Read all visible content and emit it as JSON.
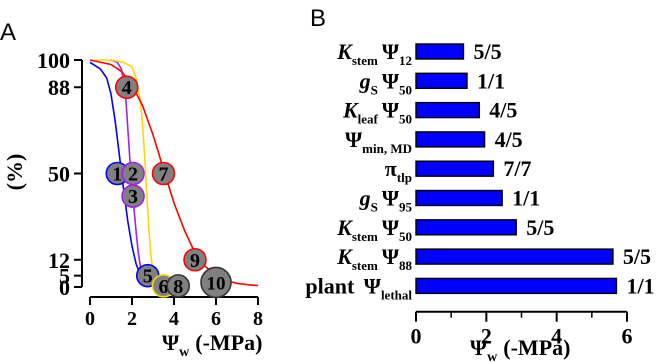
{
  "chart_data": [
    {
      "panel": "A",
      "type": "line",
      "ylabel": "(%)",
      "xlabel_main": "Ψ",
      "xlabel_sub": "w",
      "xlabel_units": "(-MPa)",
      "xlim": [
        0,
        8
      ],
      "ylim": [
        0,
        100
      ],
      "xticks": [
        0,
        2,
        4,
        6,
        8
      ],
      "yticks": [
        0,
        5,
        12,
        50,
        88,
        100
      ],
      "series": [
        {
          "color": "#0000ff",
          "x": [
            0,
            0.5,
            0.8,
            1.0,
            1.2,
            1.4,
            1.6,
            1.8,
            2.0,
            2.2,
            2.4,
            2.6,
            2.8,
            3.0,
            3.3
          ],
          "y": [
            99,
            96,
            92,
            85,
            73,
            58,
            43,
            29,
            18,
            10,
            5.5,
            3,
            2,
            1,
            0.5
          ]
        },
        {
          "color": "#a020f0",
          "x": [
            1.0,
            1.3,
            1.5,
            1.7,
            1.8,
            1.9,
            2.0,
            2.1,
            2.2,
            2.3,
            2.4,
            2.6,
            2.8
          ],
          "y": [
            100,
            99,
            96,
            84,
            70,
            56,
            44,
            34,
            24,
            15,
            9,
            4,
            1.5
          ]
        },
        {
          "color": "#ffd700",
          "x": [
            0.3,
            1.0,
            1.6,
            2.0,
            2.2,
            2.4,
            2.5,
            2.6,
            2.7,
            2.8,
            2.9,
            3.0,
            3.1,
            3.3,
            3.6,
            4.0
          ],
          "y": [
            100,
            100,
            99,
            97,
            92,
            82,
            72,
            58,
            42,
            26,
            14,
            7,
            3.5,
            1.5,
            0.5,
            0
          ]
        },
        {
          "color": "#ff0000",
          "x": [
            0,
            1.0,
            1.5,
            2.0,
            2.5,
            3.0,
            3.5,
            4.0,
            4.5,
            5.0,
            5.5,
            6.0,
            6.5,
            7.0,
            7.5,
            8.0
          ],
          "y": [
            100,
            98,
            95,
            89,
            80,
            67,
            52,
            37,
            25,
            15,
            9,
            5,
            2.8,
            1.6,
            1,
            0.6
          ]
        }
      ],
      "markers": [
        {
          "label": "1",
          "x": 1.3,
          "y": 50,
          "fill": "#808080",
          "stroke": "#0000ff",
          "r": 11
        },
        {
          "label": "2",
          "x": 2.05,
          "y": 50,
          "fill": "#808080",
          "stroke": "#a020f0",
          "r": 11
        },
        {
          "label": "3",
          "x": 2.05,
          "y": 40,
          "fill": "#808080",
          "stroke": "#a020f0",
          "r": 11
        },
        {
          "label": "4",
          "x": 1.75,
          "y": 88,
          "fill": "#808080",
          "stroke": "#ff0000",
          "r": 11
        },
        {
          "label": "5",
          "x": 2.75,
          "y": 5,
          "fill": "#808080",
          "stroke": "#0000ff",
          "r": 11
        },
        {
          "label": "6",
          "x": 3.5,
          "y": 0.5,
          "fill": "#808080",
          "stroke": "#ffd700",
          "r": 11
        },
        {
          "label": "7",
          "x": 3.5,
          "y": 50,
          "fill": "#808080",
          "stroke": "#ff0000",
          "r": 11
        },
        {
          "label": "8",
          "x": 4.2,
          "y": 0.5,
          "fill": "#808080",
          "stroke": "#333333",
          "r": 11
        },
        {
          "label": "9",
          "x": 5.0,
          "y": 12,
          "fill": "#808080",
          "stroke": "#ff0000",
          "r": 11
        },
        {
          "label": "10",
          "x": 6.0,
          "y": 2,
          "fill": "#808080",
          "stroke": "#333333",
          "r": 15
        }
      ]
    },
    {
      "panel": "B",
      "type": "bar",
      "orientation": "horizontal",
      "bar_color": "#0000ff",
      "xlabel_main": "Ψ",
      "xlabel_sub": "w",
      "xlabel_units": "(-MPa)",
      "xlim": [
        0,
        6
      ],
      "xticks": [
        0,
        2,
        4,
        6
      ],
      "categories": [
        {
          "main": "K",
          "sub": "stem",
          "psi": "Ψ",
          "psi_sub": "12"
        },
        {
          "main": "g",
          "sub": "S",
          "psi": "Ψ",
          "psi_sub": "50"
        },
        {
          "main": "K",
          "sub": "leaf",
          "psi": "Ψ",
          "psi_sub": "50"
        },
        {
          "main": "",
          "sub": "",
          "psi": "Ψ",
          "psi_sub": "min, MD"
        },
        {
          "main": "",
          "sub": "",
          "psi": "π",
          "psi_sub": "tlp"
        },
        {
          "main": "g",
          "sub": "S",
          "psi": "Ψ",
          "psi_sub": "95"
        },
        {
          "main": "K",
          "sub": "stem",
          "psi": "Ψ",
          "psi_sub": "50"
        },
        {
          "main": "K",
          "sub": "stem",
          "psi": "Ψ",
          "psi_sub": "88"
        },
        {
          "main": "plant ",
          "sub": "",
          "psi": "Ψ",
          "psi_sub": "lethal"
        }
      ],
      "values": [
        1.35,
        1.45,
        1.8,
        1.95,
        2.2,
        2.45,
        2.85,
        5.6,
        5.7
      ],
      "annotations": [
        "5/5",
        "1/1",
        "4/5",
        "4/5",
        "7/7",
        "1/1",
        "5/5",
        "5/5",
        "1/1"
      ]
    }
  ]
}
